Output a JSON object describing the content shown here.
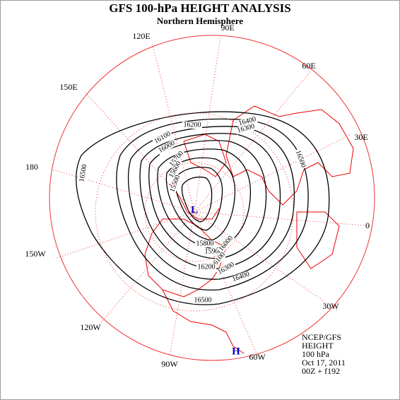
{
  "header": {
    "title": "GFS 100-hPa HEIGHT ANALYSIS",
    "subtitle": "Northern Hemisphere"
  },
  "longitudes": [
    "120E",
    "90E",
    "60E",
    "30E",
    "0",
    "30W",
    "60W",
    "90W",
    "120W",
    "150W",
    "180",
    "150E"
  ],
  "contour_labels": [
    16500,
    16400,
    16300,
    16200,
    16100,
    16000,
    15700,
    15600,
    15500,
    16500,
    15800,
    15900,
    16000,
    16100,
    16200,
    16300,
    16400,
    16500
  ],
  "centers": [
    "L",
    "H"
  ],
  "info": [
    "NCEP/GFS",
    "HEIGHT",
    "100 hPa",
    "Oct 17, 2011",
    "00Z + f192"
  ]
}
